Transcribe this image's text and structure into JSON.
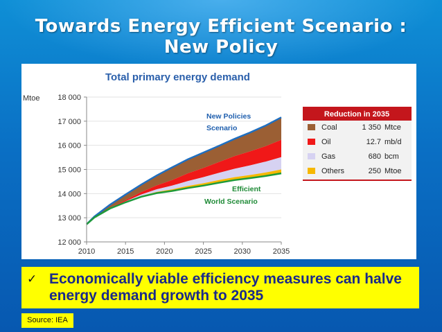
{
  "slide": {
    "title_line1": "Towards Energy Efficient Scenario :",
    "title_line2": "New Policy",
    "bullet": "Economically viable efficiency measures can halve energy demand growth to 2035",
    "source": "Source: IEA"
  },
  "chart_data": {
    "type": "area",
    "title": "Total primary energy demand",
    "ylabel": "Mtoe",
    "xlim": [
      2010,
      2035
    ],
    "ylim": [
      12000,
      18000
    ],
    "x_ticks": [
      2010,
      2015,
      2020,
      2025,
      2030,
      2035
    ],
    "y_ticks": [
      12000,
      13000,
      14000,
      15000,
      16000,
      17000,
      18000
    ],
    "x_tick_labels": [
      "2010",
      "2015",
      "2020",
      "2025",
      "2030",
      "2035"
    ],
    "y_tick_labels": [
      "12 000",
      "13 000",
      "14 000",
      "15 000",
      "16 000",
      "17 000",
      "18 000"
    ],
    "x": [
      2010,
      2011,
      2013,
      2015,
      2017,
      2019,
      2021,
      2023,
      2025,
      2027,
      2029,
      2031,
      2033,
      2035
    ],
    "new_policies": [
      12730,
      13050,
      13540,
      13960,
      14370,
      14750,
      15090,
      15420,
      15700,
      15980,
      16270,
      16530,
      16820,
      17160
    ],
    "efficient_world": [
      12730,
      13010,
      13380,
      13640,
      13870,
      14020,
      14110,
      14230,
      14330,
      14450,
      14560,
      14640,
      14730,
      14840
    ],
    "series": [
      {
        "name": "Coal",
        "color": "#9b5f34"
      },
      {
        "name": "Oil",
        "color": "#f01818"
      },
      {
        "name": "Gas",
        "color": "#d6d2f2"
      },
      {
        "name": "Others",
        "color": "#f6b800"
      }
    ],
    "reductions": [
      {
        "name": "Coal",
        "value": "1 350",
        "unit": "Mtce"
      },
      {
        "name": "Oil",
        "value": "12.7",
        "unit": "mb/d"
      },
      {
        "name": "Gas",
        "value": "680",
        "unit": "bcm"
      },
      {
        "name": "Others",
        "value": "250",
        "unit": "Mtoe"
      }
    ],
    "bands": {
      "others": [
        0,
        0,
        5,
        15,
        30,
        50,
        70,
        90,
        100,
        110,
        120,
        130,
        145,
        160
      ],
      "gas": [
        0,
        0,
        10,
        25,
        60,
        110,
        150,
        200,
        250,
        300,
        350,
        400,
        450,
        510
      ],
      "oil": [
        0,
        0,
        20,
        50,
        100,
        160,
        230,
        320,
        380,
        450,
        520,
        580,
        640,
        720
      ]
    },
    "legend_title": "Reduction in 2035",
    "legend_position": "right",
    "annotations": {
      "new_policies_line1": "New Policies",
      "new_policies_line2": "Scenario",
      "efficient_line1": "Efficient",
      "efficient_line2": "World Scenario"
    },
    "line_colors": {
      "new_policies": "#1f6fc0",
      "efficient_world": "#1e9a3a"
    }
  }
}
